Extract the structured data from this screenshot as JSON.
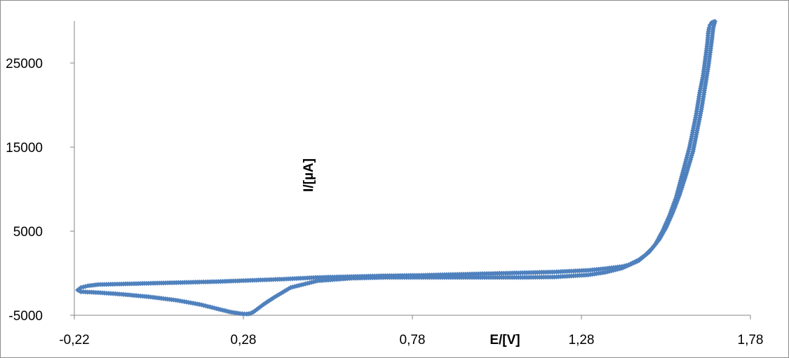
{
  "chart_data": {
    "type": "scatter",
    "title": "",
    "xlabel": "E/[V]",
    "ylabel": "I/[µA]",
    "xlim": [
      -0.22,
      1.78
    ],
    "ylim": [
      -5000,
      30000
    ],
    "x_ticks": [
      -0.22,
      0.28,
      0.78,
      1.28,
      1.78
    ],
    "x_tick_labels": [
      "-0,22",
      "0,28",
      "0,78",
      "1,28",
      "1,78"
    ],
    "y_ticks": [
      -5000,
      5000,
      15000,
      25000
    ],
    "y_tick_labels": [
      "-5000",
      "5000",
      "15000",
      "25000"
    ],
    "grid": false,
    "legend": "none",
    "marker": "diamond",
    "color": "#4f81bd",
    "series": [
      {
        "name": "",
        "x": [
          -0.2,
          -0.15,
          -0.08,
          0.0,
          0.08,
          0.15,
          0.2,
          0.24,
          0.27,
          0.29,
          0.3,
          0.31,
          0.32,
          0.34,
          0.37,
          0.42,
          0.5,
          0.6,
          0.7,
          0.8,
          0.9,
          1.0,
          1.1,
          1.2,
          1.3,
          1.35,
          1.4,
          1.45,
          1.48,
          1.5,
          1.52,
          1.54,
          1.56,
          1.58,
          1.6,
          1.61,
          1.62,
          1.63,
          1.64,
          1.645,
          1.65,
          1.653,
          1.655,
          1.658,
          1.66,
          1.665,
          1.67,
          1.675,
          1.67,
          1.665,
          1.655,
          1.645,
          1.635,
          1.62,
          1.61,
          1.59,
          1.57,
          1.55,
          1.53,
          1.51,
          1.49,
          1.47,
          1.45,
          1.42,
          1.4,
          1.35,
          1.3,
          1.25,
          1.2,
          1.1,
          1.0,
          0.9,
          0.8,
          0.7,
          0.6,
          0.5,
          0.45,
          0.4,
          0.3,
          0.2,
          0.1,
          0.0,
          -0.1,
          -0.15,
          -0.18,
          -0.2,
          -0.21,
          -0.205,
          -0.2
        ],
        "y": [
          -2200,
          -2300,
          -2500,
          -2800,
          -3200,
          -3700,
          -4200,
          -4600,
          -4800,
          -4850,
          -4800,
          -4600,
          -4300,
          -3700,
          -2900,
          -1700,
          -900,
          -600,
          -500,
          -500,
          -500,
          -500,
          -500,
          -450,
          -200,
          100,
          600,
          1500,
          2500,
          3500,
          5000,
          6800,
          9000,
          12000,
          15000,
          17000,
          19000,
          21500,
          23500,
          25000,
          26500,
          27500,
          28500,
          29200,
          29500,
          29800,
          29900,
          29950,
          29200,
          27500,
          24500,
          22000,
          19500,
          16500,
          14500,
          11800,
          9300,
          7200,
          5400,
          4000,
          3000,
          2200,
          1600,
          1000,
          800,
          550,
          350,
          250,
          150,
          50,
          -50,
          -150,
          -250,
          -300,
          -400,
          -500,
          -600,
          -700,
          -850,
          -1000,
          -1100,
          -1200,
          -1300,
          -1350,
          -1500,
          -1700,
          -2000,
          -2100,
          -2200
        ]
      }
    ]
  }
}
